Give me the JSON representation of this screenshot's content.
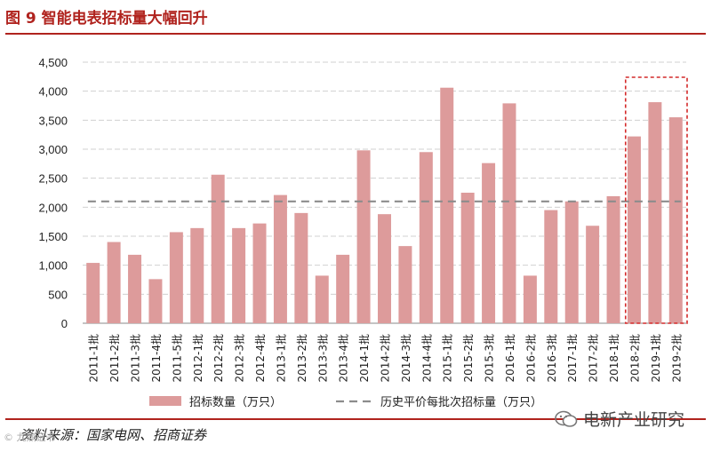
{
  "header": {
    "title": "图 9 智能电表招标量大幅回升"
  },
  "footer": {
    "source": "资料来源：国家电网、招商证券"
  },
  "watermark": {
    "left_text": "© 九鼎证书",
    "right_text": "电新产业研究"
  },
  "colors": {
    "bar": "#dd9b9b",
    "title": "#b0231e",
    "avg_line": "#8c8c8c",
    "highlight_box": "#d42a2a",
    "grid": "#d0d0d0",
    "axis_text": "#222222"
  },
  "chart_data": {
    "type": "bar",
    "title": "智能电表招标量大幅回升",
    "xlabel": "",
    "ylabel": "",
    "ylim": [
      0,
      4500
    ],
    "yticks": [
      0,
      500,
      1000,
      1500,
      2000,
      2500,
      3000,
      3500,
      4000,
      4500
    ],
    "ytick_labels": [
      "0",
      "500",
      "1,000",
      "1,500",
      "2,000",
      "2,500",
      "3,000",
      "3,500",
      "4,000",
      "4,500"
    ],
    "categories": [
      "2011-1批",
      "2011-2批",
      "2011-3批",
      "2011-4批",
      "2011-5批",
      "2012-1批",
      "2012-2批",
      "2012-3批",
      "2012-4批",
      "2013-1批",
      "2013-2批",
      "2013-3批",
      "2013-4批",
      "2014-1批",
      "2014-2批",
      "2014-3批",
      "2014-4批",
      "2015-1批",
      "2015-2批",
      "2015-3批",
      "2016-1批",
      "2016-2批",
      "2016-3批",
      "2017-1批",
      "2017-2批",
      "2018-1批",
      "2018-2批",
      "2019-1批",
      "2019-2批"
    ],
    "series": [
      {
        "name": "招标数量（万只）",
        "type": "bar",
        "values": [
          1040,
          1400,
          1180,
          760,
          1570,
          1640,
          2560,
          1640,
          1720,
          2210,
          1900,
          820,
          1180,
          2980,
          1880,
          1330,
          2950,
          4060,
          2250,
          2760,
          3790,
          820,
          1950,
          2100,
          1680,
          2190,
          3220,
          3810,
          3550
        ]
      },
      {
        "name": "历史平价每批次招标量（万只）",
        "type": "line",
        "style": "dashed",
        "value": 2100
      }
    ],
    "highlight": {
      "from": "2018-2批",
      "to": "2019-2批"
    },
    "grid": true,
    "legend_position": "bottom"
  }
}
